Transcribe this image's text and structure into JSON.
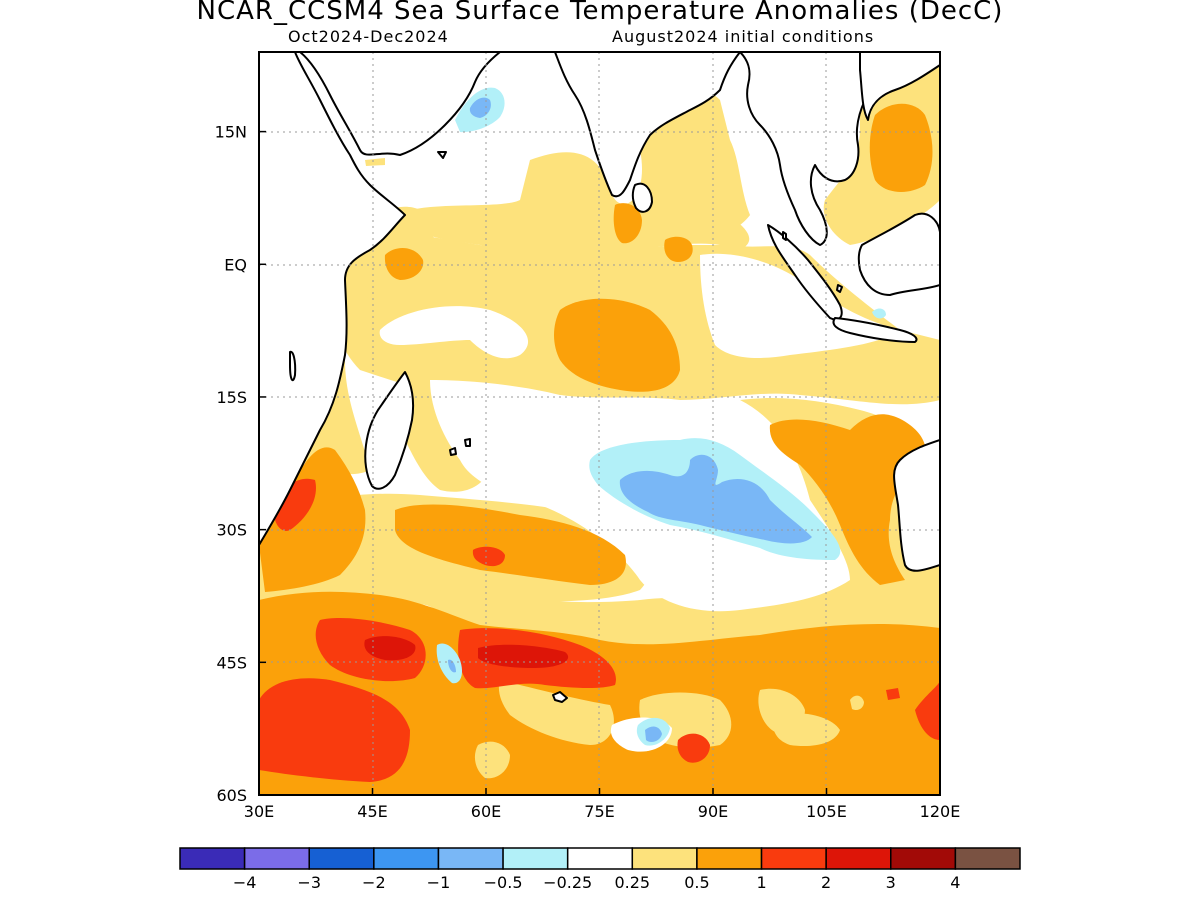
{
  "title": "NCAR_CCSM4 Sea Surface Temperature Anomalies (DecC)",
  "subtitle_left": "Oct2024-Dec2024",
  "subtitle_right": "August2024 initial conditions",
  "map": {
    "lon_range": [
      30,
      120
    ],
    "lat_range": [
      -60,
      24
    ],
    "x_ticks": [
      {
        "value": 30,
        "label": "30E"
      },
      {
        "value": 45,
        "label": "45E"
      },
      {
        "value": 60,
        "label": "60E"
      },
      {
        "value": 75,
        "label": "75E"
      },
      {
        "value": 90,
        "label": "90E"
      },
      {
        "value": 105,
        "label": "105E"
      },
      {
        "value": 120,
        "label": "120E"
      }
    ],
    "y_ticks": [
      {
        "value": 15,
        "label": "15N"
      },
      {
        "value": 0,
        "label": "EQ"
      },
      {
        "value": -15,
        "label": "15S"
      },
      {
        "value": -30,
        "label": "30S"
      },
      {
        "value": -45,
        "label": "45S"
      },
      {
        "value": -60,
        "label": "60S"
      }
    ],
    "grid": true
  },
  "colorbar": {
    "colors": [
      "#3a2bb7",
      "#7b6ce8",
      "#1660d3",
      "#3d96f2",
      "#79b7f6",
      "#b2f0f8",
      "#ffffff",
      "#fde27c",
      "#fba10a",
      "#f93b0e",
      "#dd1508",
      "#a20a07",
      "#7a5242"
    ],
    "labels": [
      "-4",
      "-3",
      "-2",
      "-1",
      "-0.5",
      "-0.25",
      "0.25",
      "0.5",
      "1",
      "2",
      "3",
      "4"
    ]
  },
  "colors": {
    "land": "#ffffff",
    "coast": "#000000",
    "grid": "#9a9a9a"
  }
}
